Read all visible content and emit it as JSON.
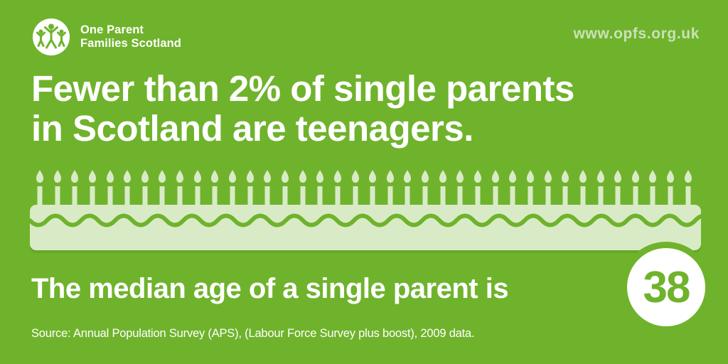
{
  "colors": {
    "background_green": "#6fb32c",
    "pale_green": "#d9ebc6",
    "website_text": "#cbe1b8",
    "white": "#ffffff"
  },
  "header": {
    "logo": {
      "icon": "family-figures-icon",
      "line1": "One Parent",
      "line2": "Families Scotland"
    },
    "website": "www.opfs.org.uk"
  },
  "headline": {
    "line1": "Fewer than 2% of single parents",
    "line2": "in Scotland are teenagers."
  },
  "cake": {
    "icon": "birthday-cake-with-candles",
    "candle_count": 38
  },
  "statement": {
    "text": "The median age of a single parent is",
    "value": "38"
  },
  "source": "Source: Annual Population Survey (APS), (Labour Force Survey plus boost), 2009 data."
}
